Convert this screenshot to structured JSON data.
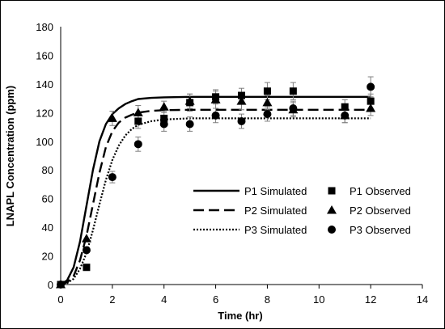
{
  "chart_data": {
    "type": "line",
    "xlabel": "Time (hr)",
    "ylabel": "LNAPL Concentration (ppm)",
    "xlim": [
      0,
      14
    ],
    "ylim": [
      0,
      180
    ],
    "x_ticks": [
      0,
      2,
      4,
      6,
      8,
      10,
      12,
      14
    ],
    "y_ticks": [
      0,
      20,
      40,
      60,
      80,
      100,
      120,
      140,
      160,
      180
    ],
    "grid": false,
    "legend_position": "bottom-right",
    "simulated": [
      {
        "name": "P1 Simulated",
        "style": "solid",
        "x": [
          0,
          0.25,
          0.5,
          0.75,
          1,
          1.25,
          1.5,
          1.75,
          2,
          2.25,
          2.5,
          2.75,
          3,
          3.5,
          4,
          5,
          6,
          7,
          8,
          9,
          10,
          11,
          12
        ],
        "y": [
          0,
          3,
          12,
          30,
          55,
          80,
          100,
          112,
          119,
          123,
          126,
          128,
          129.5,
          130.3,
          130.7,
          131,
          131,
          131,
          131,
          131,
          131,
          131,
          131
        ]
      },
      {
        "name": "P2 Simulated",
        "style": "dashed",
        "x": [
          0,
          0.25,
          0.5,
          0.75,
          1,
          1.25,
          1.5,
          1.75,
          2,
          2.25,
          2.5,
          2.75,
          3,
          3.5,
          4,
          5,
          6,
          7,
          8,
          9,
          10,
          11,
          12
        ],
        "y": [
          0,
          1.5,
          6,
          17,
          34,
          56,
          78,
          96,
          107,
          113,
          116.5,
          118.5,
          120,
          121.2,
          121.7,
          122,
          122,
          122,
          122,
          122,
          122,
          122,
          122
        ]
      },
      {
        "name": "P3 Simulated",
        "style": "dotted",
        "x": [
          0,
          0.25,
          0.5,
          0.75,
          1,
          1.25,
          1.5,
          1.75,
          2,
          2.25,
          2.5,
          2.75,
          3,
          3.5,
          4,
          5,
          6,
          7,
          8,
          9,
          10,
          11,
          12
        ],
        "y": [
          0,
          1,
          4,
          11,
          22,
          38,
          56,
          73,
          87,
          97,
          104,
          108.5,
          111.5,
          114,
          115.2,
          116,
          116,
          116,
          116,
          116,
          116,
          116,
          116
        ]
      }
    ],
    "observed": [
      {
        "name": "P1 Observed",
        "marker": "square",
        "x": [
          0,
          1,
          3,
          4,
          5,
          6,
          7,
          8,
          9,
          11,
          12
        ],
        "y": [
          0,
          12,
          114,
          116,
          127,
          131,
          132,
          135,
          135,
          124,
          128
        ],
        "err": [
          0,
          0,
          5,
          5,
          6,
          5,
          5,
          6,
          6,
          5,
          5
        ]
      },
      {
        "name": "P2 Observed",
        "marker": "triangle",
        "x": [
          0,
          1,
          2,
          3,
          4,
          5,
          6,
          7,
          8,
          9,
          11,
          12
        ],
        "y": [
          0,
          32,
          116,
          120,
          124,
          128,
          129,
          128,
          127,
          122,
          118,
          123
        ],
        "err": [
          0,
          0,
          5,
          5,
          4,
          5,
          6,
          6,
          5,
          5,
          5,
          5
        ]
      },
      {
        "name": "P3 Observed",
        "marker": "circle",
        "x": [
          0,
          1,
          2,
          3,
          4,
          5,
          6,
          7,
          8,
          9,
          11,
          12
        ],
        "y": [
          0,
          24,
          75,
          98,
          112,
          112,
          118,
          114,
          119,
          123,
          118,
          138
        ],
        "err": [
          0,
          0,
          4,
          5,
          5,
          5,
          5,
          5,
          5,
          5,
          5,
          7
        ]
      }
    ]
  }
}
